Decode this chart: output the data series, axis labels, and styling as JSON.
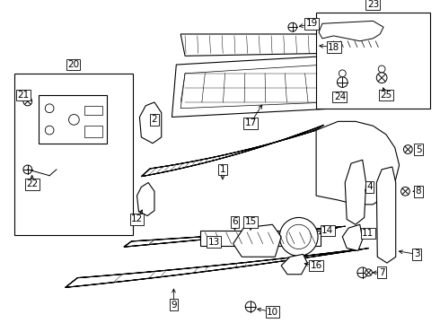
{
  "bg_color": "#ffffff",
  "lw": 0.8,
  "label_fs": 7.5,
  "arrow_color": "black",
  "part_color": "black",
  "fill_light": "#f0f0f0",
  "fill_mid": "#e0e0e0"
}
